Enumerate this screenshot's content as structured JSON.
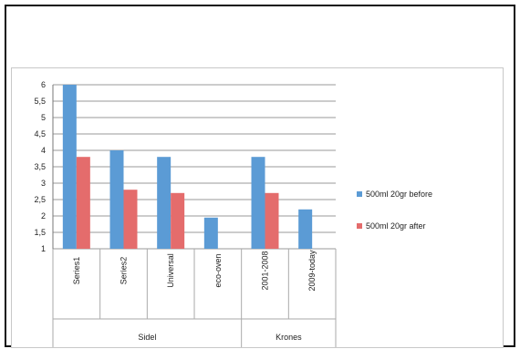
{
  "chart_data": {
    "type": "bar",
    "categories": [
      "Series1",
      "Series2",
      "Universal",
      "eco-oven",
      "2001-2008",
      "2009-today"
    ],
    "groups": [
      {
        "label": "Sidel",
        "categories": [
          "Series1",
          "Series2",
          "Universal",
          "eco-oven"
        ]
      },
      {
        "label": "Krones",
        "categories": [
          "2001-2008",
          "2009-today"
        ]
      }
    ],
    "series": [
      {
        "name": "500ml 20gr before",
        "color": "#5b9bd5",
        "values": [
          6,
          4,
          3.8,
          1.95,
          3.8,
          2.2
        ]
      },
      {
        "name": "500ml 20gr after",
        "color": "#e46c6c",
        "values": [
          3.8,
          2.8,
          2.7,
          null,
          2.7,
          null
        ]
      }
    ],
    "yticks": [
      "1",
      "1,5",
      "2",
      "2,5",
      "3",
      "3,5",
      "4",
      "4,5",
      "5",
      "5,5",
      "6"
    ],
    "ylim": [
      1,
      6
    ],
    "grid": true,
    "legend_position": "right",
    "title": "",
    "xlabel": "",
    "ylabel": ""
  }
}
